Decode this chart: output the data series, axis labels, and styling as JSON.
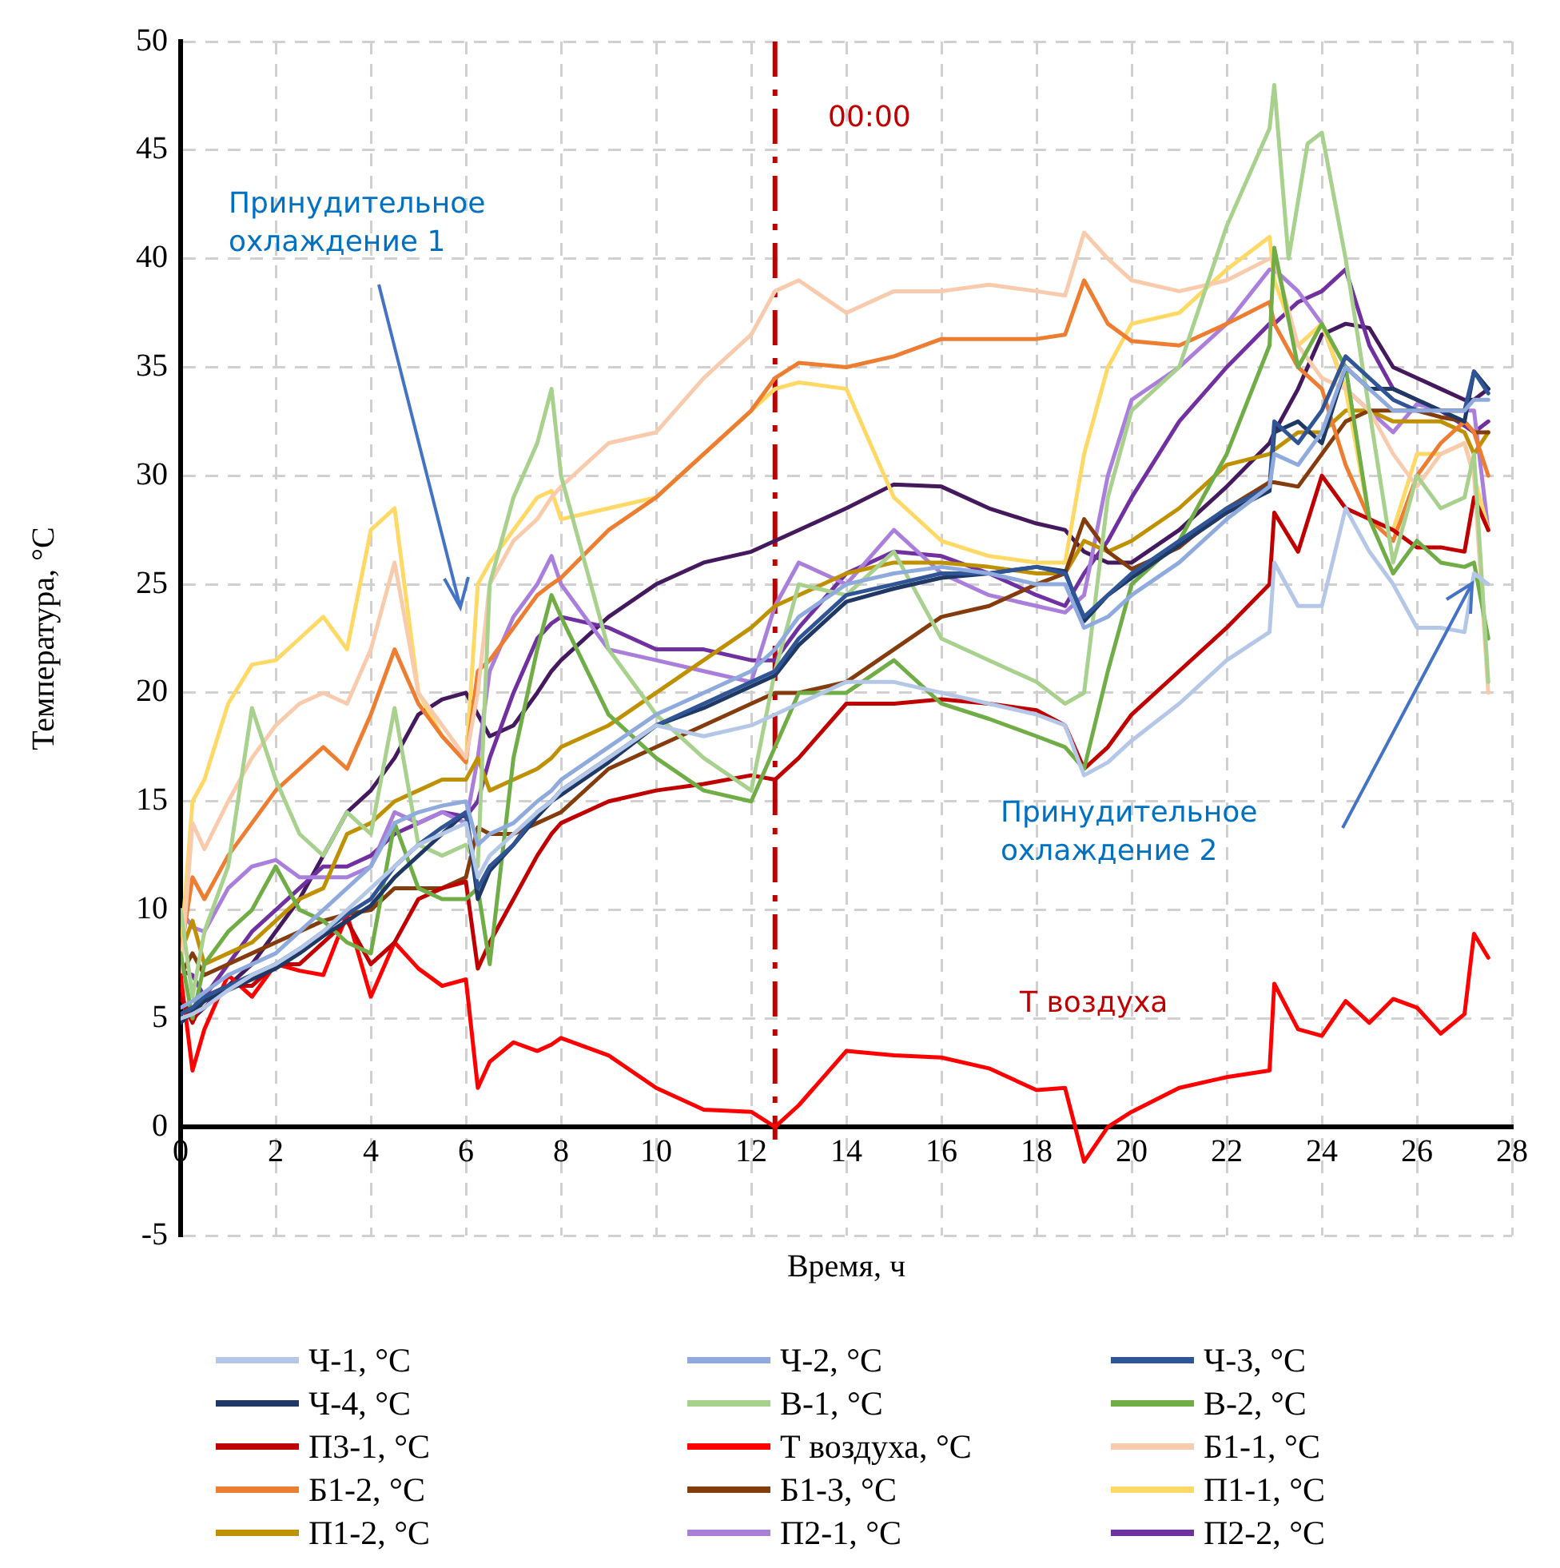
{
  "chart_data": {
    "type": "line",
    "xlabel": "Время, ч",
    "ylabel": "Температура, °С",
    "xlim": [
      0,
      28
    ],
    "xticks": [
      0,
      2,
      4,
      6,
      8,
      10,
      12,
      14,
      16,
      18,
      20,
      22,
      24,
      26,
      28
    ],
    "ylim": [
      -5,
      50
    ],
    "yticks": [
      -5,
      0,
      5,
      10,
      15,
      20,
      25,
      30,
      35,
      40,
      45,
      50
    ],
    "grid": true,
    "legend": "bottom",
    "x": [
      0,
      0.25,
      0.5,
      1,
      1.5,
      2,
      2.5,
      3,
      3.5,
      4,
      4.5,
      5,
      5.5,
      6,
      6.25,
      6.5,
      7,
      7.5,
      7.8,
      8,
      9,
      10,
      11,
      12,
      12.5,
      13,
      14,
      15,
      16,
      17,
      18,
      18.6,
      19,
      19.5,
      20,
      21,
      22,
      22.9,
      23,
      23.5,
      24,
      24.5,
      25,
      25.5,
      26,
      26.5,
      27,
      27.2,
      27.5
    ],
    "series": [
      {
        "name": "Ч-1, °C",
        "color": "#b4c7e7",
        "values": [
          5,
          5.2,
          5.5,
          6.3,
          7,
          7.5,
          8.2,
          9,
          10,
          11,
          12,
          13,
          13.5,
          14,
          11.5,
          12.5,
          13.5,
          14.5,
          15,
          15.5,
          17,
          18.5,
          18,
          18.5,
          19,
          19.5,
          20.5,
          20.5,
          20,
          19.5,
          19,
          18.5,
          16.2,
          16.8,
          17.8,
          19.5,
          21.5,
          22.8,
          26,
          24,
          24,
          28.5,
          26.5,
          25,
          23,
          23,
          22.8,
          25.5,
          25
        ]
      },
      {
        "name": "Ч-2, °C",
        "color": "#8faadc",
        "values": [
          5.5,
          5.8,
          6.2,
          7,
          7.5,
          8,
          9,
          10,
          11,
          12,
          14,
          14.5,
          14.8,
          15,
          13,
          13.5,
          14,
          15,
          15.5,
          16,
          17.5,
          19,
          20,
          21,
          22,
          23.5,
          25,
          25.5,
          25.8,
          25.5,
          25,
          25,
          23,
          23.5,
          24.5,
          26,
          28,
          29.5,
          31,
          30.5,
          32,
          35,
          34,
          33,
          33,
          33,
          33,
          33.5,
          33.5
        ]
      },
      {
        "name": "Ч-3, °C",
        "color": "#2f5597",
        "values": [
          5.2,
          5.5,
          6,
          6.5,
          7,
          7.5,
          8.2,
          9,
          9.8,
          10.5,
          12,
          13,
          13.8,
          14.5,
          11,
          12,
          13,
          14.5,
          15,
          15.5,
          17,
          18.5,
          19.5,
          20.5,
          21,
          22.5,
          24.5,
          25,
          25.5,
          25.5,
          25.8,
          25.5,
          23.5,
          24.5,
          25.5,
          27,
          28.5,
          29.5,
          32.5,
          31.5,
          33,
          35.5,
          34.5,
          33.5,
          33,
          33,
          33,
          34.8,
          33.8
        ]
      },
      {
        "name": "Ч-4, °C",
        "color": "#203864",
        "values": [
          4.8,
          5.3,
          5.8,
          6.3,
          6.8,
          7.3,
          8,
          8.8,
          9.5,
          10.2,
          11.5,
          12.5,
          13.5,
          14.5,
          10.5,
          11.8,
          13,
          14.3,
          15,
          15.3,
          16.8,
          18.5,
          19.3,
          20.3,
          20.8,
          22.2,
          24.2,
          24.8,
          25.3,
          25.5,
          25.8,
          25.6,
          23.3,
          24.5,
          25.3,
          26.8,
          28.3,
          29.3,
          32,
          32.5,
          31.5,
          35,
          34,
          34,
          33.5,
          33,
          32.5,
          34.8,
          34
        ]
      },
      {
        "name": "В-1, °C",
        "color": "#a9d18e",
        "x": [
          0,
          0.25,
          0.5,
          1,
          1.5,
          2,
          2.5,
          3,
          3.5,
          4,
          4.5,
          5,
          5.5,
          6,
          6.25,
          6.5,
          7,
          7.5,
          7.8,
          8,
          9,
          10,
          11,
          12,
          12.5,
          13,
          14,
          15,
          16,
          17,
          18,
          18.6,
          19,
          19.5,
          20,
          21,
          22,
          22.9,
          23,
          23.3,
          23.7,
          24,
          24.5,
          25,
          25.5,
          26,
          26.5,
          27,
          27.2,
          27.5
        ],
        "values": [
          10,
          6,
          9,
          12,
          19.3,
          16,
          13.5,
          12.5,
          14.5,
          13.5,
          19.3,
          13,
          12.5,
          13,
          12,
          25,
          29,
          31.5,
          34,
          30,
          22,
          19,
          17,
          15.5,
          21,
          25,
          24.5,
          26.5,
          22.5,
          21.5,
          20.5,
          19.5,
          20,
          29,
          33,
          35,
          41.5,
          46,
          48,
          40,
          45.3,
          45.8,
          40,
          33,
          26,
          30,
          28.5,
          29,
          31,
          20.5
        ]
      },
      {
        "name": "В-2, °C",
        "color": "#70ad47",
        "values": [
          8,
          5,
          7.5,
          9,
          10,
          12,
          10,
          9.5,
          8.5,
          8,
          14,
          11,
          10.5,
          10.5,
          11,
          7.5,
          17,
          22,
          24.5,
          23.5,
          19,
          17,
          15.5,
          15,
          17.5,
          20,
          20,
          21.5,
          19.5,
          18.8,
          18,
          17.5,
          16.5,
          21,
          25,
          27,
          31,
          36,
          40.5,
          35,
          37,
          35,
          28,
          25.5,
          27,
          26,
          25.8,
          26,
          22.5
        ]
      },
      {
        "name": "П3-1, °C",
        "color": "#c00000",
        "values": [
          6,
          4.8,
          6,
          6.5,
          6.5,
          7.5,
          7.5,
          8.5,
          9.5,
          7.5,
          8.5,
          10.5,
          11,
          11.3,
          7.3,
          8.5,
          10.5,
          12.5,
          13.5,
          14,
          15,
          15.5,
          15.8,
          16.2,
          16,
          17,
          19.5,
          19.5,
          19.7,
          19.5,
          19.2,
          18.5,
          16.5,
          17.5,
          19,
          21,
          23,
          25,
          28.3,
          26.5,
          30,
          28.5,
          28,
          27.5,
          26.7,
          26.7,
          26.5,
          29,
          27.5
        ]
      },
      {
        "name": "Т воздуха, °C",
        "color": "#ff0000",
        "values": [
          7,
          2.6,
          4.5,
          7,
          6,
          7.5,
          7.2,
          7,
          9.8,
          6,
          8.5,
          7.3,
          6.5,
          6.8,
          1.8,
          3,
          3.9,
          3.5,
          3.8,
          4.1,
          3.3,
          1.8,
          0.8,
          0.7,
          0,
          1,
          3.5,
          3.3,
          3.2,
          2.7,
          1.7,
          1.8,
          -1.6,
          0,
          0.7,
          1.8,
          2.3,
          2.6,
          6.6,
          4.5,
          4.2,
          5.8,
          4.8,
          5.9,
          5.5,
          4.3,
          5.2,
          8.9,
          7.8
        ]
      },
      {
        "name": "Б1-1, °C",
        "color": "#f8cbad",
        "values": [
          7,
          14,
          12.8,
          15,
          17,
          18.5,
          19.5,
          20,
          19.5,
          22,
          26,
          20,
          18.5,
          17,
          20,
          25,
          27,
          28,
          29,
          29.5,
          31.5,
          32,
          34.5,
          36.5,
          38.5,
          39,
          37.5,
          38.5,
          38.5,
          38.8,
          38.5,
          38.3,
          41.2,
          40,
          39,
          38.5,
          39,
          40,
          40,
          36,
          34.5,
          34,
          33,
          31,
          29.5,
          31,
          31.5,
          30,
          20
        ]
      },
      {
        "name": "Б1-2, °C",
        "color": "#ed7d31",
        "values": [
          8,
          11.5,
          10.5,
          12.5,
          14,
          15.5,
          16.5,
          17.5,
          16.5,
          19,
          22,
          19.5,
          18,
          16.8,
          21,
          21.5,
          23,
          24.5,
          25,
          25.3,
          27.5,
          29,
          31,
          33,
          34.5,
          35.2,
          35,
          35.5,
          36.3,
          36.3,
          36.3,
          36.5,
          39,
          37,
          36.2,
          36,
          37,
          38,
          37,
          35,
          34,
          30.5,
          28,
          27,
          30,
          31.5,
          32.5,
          32,
          30
        ]
      },
      {
        "name": "Б1-3, °C",
        "color": "#843c0c",
        "values": [
          7,
          8,
          7,
          7.5,
          8,
          8.5,
          9,
          9.5,
          9.8,
          10,
          11,
          11,
          11,
          11.5,
          13.8,
          13.5,
          13.5,
          14,
          14.3,
          14.5,
          16.5,
          17.5,
          18.5,
          19.5,
          20,
          20,
          20.5,
          22,
          23.5,
          24,
          25,
          25.5,
          28,
          26.5,
          25.7,
          26.7,
          28.5,
          29.7,
          29.7,
          29.5,
          31,
          32.5,
          33,
          33,
          33,
          32.7,
          32.5,
          32,
          32
        ]
      },
      {
        "name": "П1-1, °C",
        "color": "#ffd966",
        "values": [
          8,
          15,
          16,
          19.5,
          21.3,
          21.5,
          22.5,
          23.5,
          22,
          27.5,
          28.5,
          20,
          18,
          16.8,
          25,
          26,
          27.5,
          29,
          29.3,
          28,
          28.5,
          29,
          31,
          33,
          34,
          34.3,
          34,
          29,
          27,
          26.3,
          26,
          26,
          31,
          35,
          37,
          37.5,
          39.5,
          41,
          39,
          36,
          37,
          34,
          28,
          27.5,
          31,
          31,
          31.5,
          30,
          27.5
        ]
      },
      {
        "name": "П1-2, °C",
        "color": "#bf9000",
        "values": [
          8,
          9.5,
          7.5,
          8,
          8.5,
          9.5,
          10.5,
          11,
          13.5,
          14,
          15,
          15.5,
          16,
          16,
          17,
          15.5,
          16,
          16.5,
          17,
          17.5,
          18.5,
          20,
          21.5,
          23,
          24,
          24.5,
          25.5,
          26,
          26,
          25.8,
          25.5,
          25.5,
          27,
          26.5,
          27,
          28.5,
          30.5,
          31,
          31.2,
          32,
          32,
          33,
          33,
          32.5,
          32.5,
          32.5,
          32,
          31,
          32
        ]
      },
      {
        "name": "П2-1, °C",
        "color": "#a97fdb",
        "values": [
          10,
          9.2,
          9,
          11,
          12,
          12.3,
          11.5,
          11.5,
          11.5,
          12,
          14.5,
          14,
          14.5,
          14,
          17,
          21,
          23.5,
          25,
          26.3,
          25,
          22,
          21.5,
          21,
          20.5,
          24,
          26,
          25,
          27.5,
          25.5,
          24.5,
          24,
          23.7,
          24.5,
          30,
          33.5,
          35,
          37,
          39.5,
          39.5,
          38.5,
          37,
          34,
          33,
          32,
          33.3,
          33,
          33,
          33,
          27.5
        ]
      },
      {
        "name": "П2-2, °C",
        "color": "#7030a0",
        "values": [
          7.2,
          7,
          6,
          7.5,
          9,
          10,
          11,
          12,
          12,
          12.5,
          13.5,
          14,
          14.5,
          14.3,
          15,
          17,
          20,
          22.5,
          23.2,
          23.5,
          23,
          22,
          22,
          21.5,
          21.5,
          23,
          25.5,
          26.5,
          26.3,
          25.5,
          24.5,
          24,
          25.5,
          27,
          29,
          32.5,
          35,
          37,
          37,
          38,
          38.5,
          39.5,
          36,
          34,
          33.5,
          33,
          32.3,
          32,
          32.5
        ]
      },
      {
        "color": "#44195e",
        "values": [
          6,
          5,
          5.5,
          6.5,
          7.5,
          9,
          10.5,
          12.5,
          14.5,
          15.5,
          17,
          19,
          19.7,
          20,
          19,
          18,
          18.5,
          20,
          21,
          21.5,
          23.5,
          25,
          26,
          26.5,
          27,
          27.5,
          28.5,
          29.6,
          29.5,
          28.5,
          27.8,
          27.5,
          26.5,
          26,
          26,
          27.5,
          29.5,
          31.5,
          32,
          34,
          36.5,
          37,
          36.8,
          35,
          34.5,
          34,
          33.5,
          33.5,
          34
        ]
      }
    ],
    "ref_lines": [
      {
        "axis": "x",
        "value": 12.5,
        "color": "#c00000",
        "line_style": "dashed"
      }
    ],
    "annotations": [
      "00:00",
      "Принудительное охлаждение 1",
      "Принудительное охлаждение 2",
      "Т воздуха"
    ]
  }
}
